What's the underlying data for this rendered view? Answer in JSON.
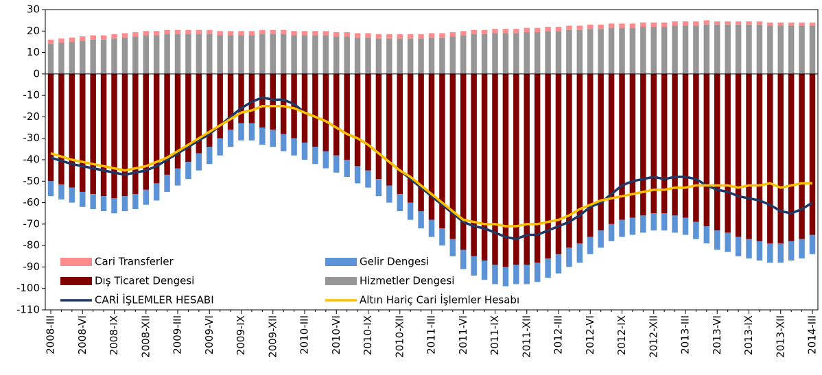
{
  "chart_data": {
    "type": "bar",
    "categories": [
      "2008-III",
      null,
      null,
      "2008-VI",
      null,
      null,
      "2008-IX",
      null,
      null,
      "2008-XII",
      null,
      null,
      "2009-III",
      null,
      null,
      "2009-VI",
      null,
      null,
      "2009-IX",
      null,
      null,
      "2009-XII",
      null,
      null,
      "2010-III",
      null,
      null,
      "2010-VI",
      null,
      null,
      "2010-IX",
      null,
      null,
      "2010-XII",
      null,
      null,
      "2011-III",
      null,
      null,
      "2011-VI",
      null,
      null,
      "2011-IX",
      null,
      null,
      "2011-XII",
      null,
      null,
      "2012-III",
      null,
      null,
      "2012-VI",
      null,
      null,
      "2012-IX",
      null,
      null,
      "2012-XII",
      null,
      null,
      "2013-III",
      null,
      null,
      "2013-VI",
      null,
      null,
      "2013-IX",
      null,
      null,
      "2013-XII",
      null,
      null,
      "2014-III"
    ],
    "series": [
      {
        "name": "Cari Transferler",
        "type": "bar",
        "color": "#ff8c8c",
        "values": [
          2,
          2,
          2,
          2,
          2,
          2,
          2,
          2,
          2,
          2,
          2,
          2,
          2,
          2,
          2,
          2,
          2,
          2,
          2,
          2,
          2,
          2,
          2,
          2,
          2,
          2,
          2,
          2,
          2,
          2,
          2,
          2,
          2,
          2,
          2,
          2,
          2,
          2,
          2,
          2,
          2,
          2,
          2,
          2,
          2,
          2,
          2,
          2,
          2,
          2,
          2,
          2,
          2,
          2,
          2,
          2,
          2,
          2,
          2,
          2,
          2,
          2,
          2,
          1.5,
          1.5,
          1.5,
          1.5,
          1.5,
          1.5,
          1.5,
          1.5,
          1.5,
          1.5
        ]
      },
      {
        "name": "Gelir Dengesi",
        "type": "bar",
        "color": "#5b93d6",
        "values": [
          -7,
          -7,
          -7,
          -7,
          -7,
          -7,
          -7,
          -7,
          -7,
          -7,
          -8,
          -8,
          -8,
          -8,
          -8,
          -8,
          -8,
          -8,
          -8,
          -8,
          -8,
          -8,
          -8,
          -8,
          -8,
          -8,
          -8,
          -8,
          -8,
          -8,
          -8,
          -8,
          -8,
          -8,
          -8,
          -8,
          -8,
          -8,
          -8,
          -9,
          -9,
          -9,
          -9,
          -9,
          -9,
          -9,
          -9,
          -9,
          -9,
          -9,
          -9,
          -8,
          -8,
          -8,
          -8,
          -8,
          -8,
          -8,
          -8,
          -8,
          -8,
          -8,
          -8,
          -9,
          -9,
          -9,
          -9,
          -9,
          -9,
          -9,
          -9,
          -9,
          -9
        ]
      },
      {
        "name": "Dış Ticaret Dengesi",
        "type": "bar",
        "color": "#800000",
        "values": [
          -50,
          -51.5,
          -53,
          -55,
          -56,
          -57,
          -58,
          -57,
          -56,
          -54,
          -51,
          -47,
          -44,
          -41,
          -37,
          -34,
          -30,
          -26,
          -23,
          -23,
          -25,
          -26,
          -28,
          -30,
          -32,
          -34,
          -36,
          -38,
          -40,
          -43,
          -45,
          -49,
          -52,
          -56,
          -60,
          -64,
          -68,
          -72,
          -77,
          -82,
          -85,
          -87,
          -89,
          -90,
          -89,
          -89,
          -88,
          -86,
          -84,
          -81,
          -79,
          -76,
          -73,
          -70,
          -68,
          -67,
          -66,
          -65,
          -65,
          -66,
          -67,
          -69,
          -71,
          -73,
          -74,
          -76,
          -77,
          -78,
          -79,
          -79,
          -78,
          -77,
          -75
        ]
      },
      {
        "name": "Hizmetler Dengesi",
        "type": "bar",
        "color": "#969696",
        "values": [
          14,
          14.5,
          15,
          15.5,
          16,
          16,
          16.5,
          17,
          17.5,
          18,
          18,
          18.5,
          18.5,
          18.5,
          18.5,
          18.5,
          18,
          18,
          18,
          18,
          18.5,
          18.5,
          18.5,
          18,
          18,
          18,
          18,
          17.5,
          17.5,
          17,
          17,
          16.5,
          16.5,
          16.5,
          16.5,
          16.5,
          17,
          17,
          17.5,
          18,
          18.5,
          18.5,
          19,
          19,
          19,
          19.5,
          19.5,
          20,
          20,
          20.5,
          20.5,
          21,
          21,
          21.5,
          21.5,
          21.5,
          22,
          22,
          22,
          22.5,
          22.5,
          22.5,
          23,
          23,
          23,
          23,
          23,
          23,
          22.5,
          22.5,
          22.5,
          22.5,
          22.5
        ]
      },
      {
        "name": "CARİ İŞLEMLER HESABI",
        "type": "line",
        "color": "#1f3864",
        "values": [
          -39,
          -40.5,
          -42,
          -43,
          -44,
          -45,
          -46,
          -47,
          -46,
          -45,
          -43,
          -40,
          -37,
          -34,
          -31,
          -28,
          -24,
          -20,
          -16,
          -13,
          -11,
          -12,
          -12,
          -14,
          -18,
          -20,
          -22,
          -25,
          -28,
          -30,
          -33,
          -37,
          -41,
          -45,
          -49,
          -53,
          -57,
          -61,
          -65,
          -69,
          -71,
          -72,
          -74,
          -76,
          -77,
          -75,
          -75,
          -73,
          -71,
          -69,
          -66,
          -62,
          -60,
          -56,
          -52,
          -50,
          -49,
          -48,
          -49,
          -48,
          -48,
          -49,
          -52,
          -54,
          -55,
          -57,
          -58,
          -59,
          -61,
          -64,
          -65,
          -63,
          -60
        ]
      },
      {
        "name": "Altın Hariç Cari İşlemler Hesabı",
        "type": "line",
        "color": "#ffc000",
        "values": [
          -37,
          -38.5,
          -40,
          -41,
          -42,
          -43,
          -44,
          -45,
          -44,
          -43,
          -41,
          -39,
          -36,
          -33,
          -30,
          -27,
          -24,
          -21,
          -18,
          -17,
          -15,
          -15,
          -15,
          -16,
          -18,
          -20,
          -22,
          -25,
          -28,
          -30,
          -33,
          -37,
          -41,
          -45,
          -48,
          -52,
          -56,
          -60,
          -64,
          -68,
          -69,
          -70,
          -70,
          -71,
          -71,
          -70,
          -70,
          -69,
          -68,
          -66,
          -63,
          -61,
          -59,
          -58,
          -57,
          -56,
          -55,
          -54,
          -54,
          -53,
          -53,
          -52,
          -52,
          -52,
          -52,
          -53,
          -52,
          -52,
          -51,
          -53,
          -52,
          -51,
          -51
        ]
      }
    ],
    "ylim": [
      -110,
      30
    ],
    "yticks": [
      -110,
      -100,
      -90,
      -80,
      -70,
      -60,
      -50,
      -40,
      -30,
      -20,
      -10,
      0,
      10,
      20,
      30
    ],
    "legend": "lower left"
  }
}
